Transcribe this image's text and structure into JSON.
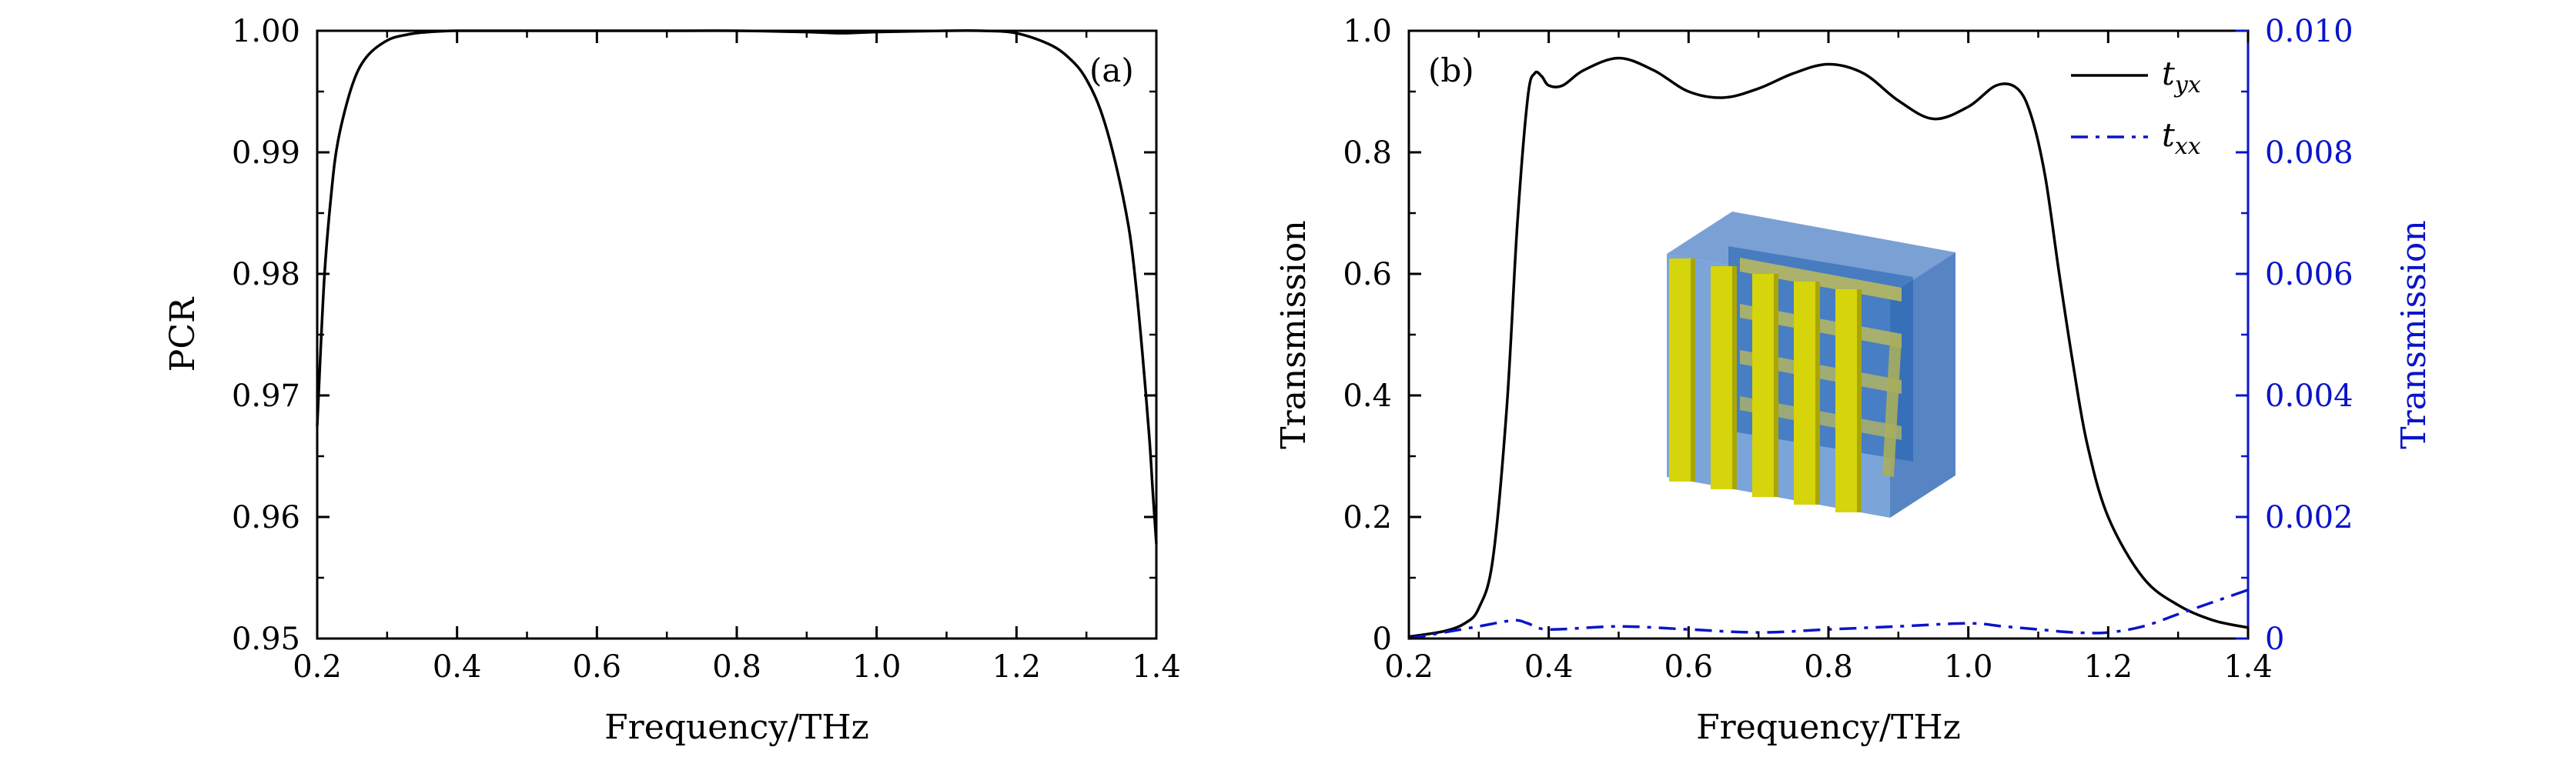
{
  "chart_data": [
    {
      "type": "line",
      "panel_label": "(a)",
      "xlabel": "Frequency/THz",
      "ylabel": "PCR",
      "xlim": [
        0.2,
        1.4
      ],
      "ylim": [
        0.95,
        1.0
      ],
      "xticks": [
        "0.2",
        "0.4",
        "0.6",
        "0.8",
        "1.0",
        "1.2",
        "1.4"
      ],
      "yticks": [
        "0.95",
        "0.96",
        "0.97",
        "0.98",
        "0.99",
        "1.00"
      ],
      "grid": false,
      "series": [
        {
          "color": "#000000",
          "style": "solid",
          "x": [
            0.2,
            0.21,
            0.22,
            0.23,
            0.25,
            0.27,
            0.3,
            0.33,
            0.36,
            0.4,
            0.5,
            0.6,
            0.7,
            0.8,
            0.9,
            0.95,
            1.0,
            1.1,
            1.15,
            1.2,
            1.25,
            1.28,
            1.3,
            1.32,
            1.34,
            1.36,
            1.37,
            1.38,
            1.39,
            1.395,
            1.4
          ],
          "y": [
            0.9675,
            0.9795,
            0.9865,
            0.991,
            0.9955,
            0.9978,
            0.9992,
            0.9997,
            0.9999,
            1.0,
            1.0,
            1.0,
            1.0,
            1.0,
            0.9999,
            0.9998,
            0.9999,
            1.0,
            1.0,
            0.9998,
            0.9988,
            0.9975,
            0.996,
            0.9935,
            0.9895,
            0.984,
            0.9795,
            0.9735,
            0.9665,
            0.962,
            0.9578
          ]
        }
      ]
    },
    {
      "type": "line",
      "panel_label": "(b)",
      "xlabel": "Frequency/THz",
      "ylabel": "Transmission",
      "ylabel_right": "Transmission",
      "xlim": [
        0.2,
        1.4
      ],
      "ylim": [
        0,
        1.0
      ],
      "ylim_right": [
        0,
        0.01
      ],
      "xticks": [
        "0.2",
        "0.4",
        "0.6",
        "0.8",
        "1.0",
        "1.2",
        "1.4"
      ],
      "yticks": [
        "0",
        "0.2",
        "0.4",
        "0.6",
        "0.8",
        "1.0"
      ],
      "yticks_right": [
        "0",
        "0.002",
        "0.004",
        "0.006",
        "0.008",
        "0.010"
      ],
      "legend_position": "top-right",
      "grid": false,
      "series": [
        {
          "name": "t_yx",
          "color": "#000000",
          "style": "solid",
          "axis": "left",
          "x": [
            0.2,
            0.25,
            0.28,
            0.3,
            0.32,
            0.34,
            0.355,
            0.37,
            0.38,
            0.39,
            0.4,
            0.42,
            0.45,
            0.5,
            0.55,
            0.6,
            0.65,
            0.7,
            0.75,
            0.8,
            0.85,
            0.9,
            0.95,
            1.0,
            1.04,
            1.07,
            1.09,
            1.11,
            1.13,
            1.15,
            1.17,
            1.2,
            1.25,
            1.3,
            1.35,
            1.4
          ],
          "y": [
            0.003,
            0.012,
            0.025,
            0.05,
            0.13,
            0.38,
            0.68,
            0.89,
            0.93,
            0.925,
            0.91,
            0.91,
            0.935,
            0.955,
            0.935,
            0.9,
            0.89,
            0.905,
            0.93,
            0.945,
            0.93,
            0.885,
            0.855,
            0.875,
            0.91,
            0.905,
            0.86,
            0.76,
            0.6,
            0.45,
            0.32,
            0.2,
            0.1,
            0.055,
            0.03,
            0.018
          ]
        },
        {
          "name": "t_xx",
          "color": "#0a14c8",
          "style": "dashdot",
          "axis": "right",
          "x": [
            0.2,
            0.25,
            0.3,
            0.35,
            0.37,
            0.4,
            0.5,
            0.6,
            0.7,
            0.8,
            0.9,
            1.0,
            1.05,
            1.1,
            1.15,
            1.2,
            1.25,
            1.3,
            1.35,
            1.4
          ],
          "y": [
            0.0,
            0.0001,
            0.0002,
            0.0003,
            0.00025,
            0.00015,
            0.0002,
            0.00015,
            0.0001,
            0.00015,
            0.0002,
            0.00025,
            0.0002,
            0.00015,
            0.0001,
            0.0001,
            0.0002,
            0.0004,
            0.0006,
            0.0008
          ]
        }
      ],
      "inset": "metasurface unit-cell illustration"
    }
  ]
}
